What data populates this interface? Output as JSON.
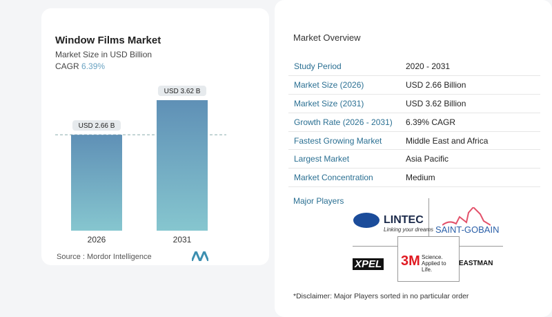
{
  "chart_data": {
    "type": "bar",
    "title": "Window Films Market",
    "subtitle": "Market Size in USD Billion",
    "cagr_label": "CAGR",
    "cagr_value": "6.39%",
    "categories": [
      "2026",
      "2031"
    ],
    "values": [
      2.66,
      3.62
    ],
    "data_labels": [
      "USD 2.66 B",
      "USD 3.62 B"
    ],
    "bar_color": "#5f95b8",
    "reference_line": "dashed at 2026 value",
    "source": "Source :  Mordor Intelligence"
  },
  "overview": {
    "title": "Market Overview",
    "rows": [
      {
        "k": "Study Period",
        "v": "2020 - 2031"
      },
      {
        "k": "Market Size (2026)",
        "v": "USD 2.66 Billion"
      },
      {
        "k": "Market Size (2031)",
        "v": "USD 3.62 Billion"
      },
      {
        "k": "Growth Rate (2026 - 2031)",
        "v": "6.39% CAGR"
      },
      {
        "k": "Fastest Growing Market",
        "v": "Middle East and Africa"
      },
      {
        "k": "Largest Market",
        "v": "Asia Pacific"
      },
      {
        "k": "Market Concentration",
        "v": "Medium"
      }
    ],
    "players_title": "Major Players",
    "players": [
      "LINTEC",
      "Linking your dreams",
      "SAINT-GOBAIN",
      "XPEL",
      "3M",
      "Science. Applied to Life.",
      "EASTMAN"
    ],
    "disclaimer": "*Disclaimer: Major Players sorted in no particular order"
  }
}
